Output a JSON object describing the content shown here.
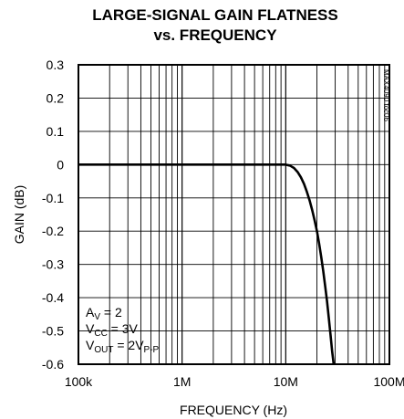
{
  "chart_data": {
    "type": "line",
    "title_line1": "LARGE-SIGNAL GAIN FLATNESS",
    "title_line2": "vs. FREQUENCY",
    "xlabel": "FREQUENCY (Hz)",
    "ylabel": "GAIN (dB)",
    "x_scale": "log",
    "xlim": [
      100000,
      100000000
    ],
    "ylim": [
      -0.6,
      0.3
    ],
    "grid": true,
    "x_ticks": [
      {
        "value": 100000,
        "label": "100k"
      },
      {
        "value": 1000000,
        "label": "1M"
      },
      {
        "value": 10000000,
        "label": "10M"
      },
      {
        "value": 100000000,
        "label": "100M"
      }
    ],
    "y_ticks": [
      {
        "value": 0.3,
        "label": "0.3"
      },
      {
        "value": 0.2,
        "label": "0.2"
      },
      {
        "value": 0.1,
        "label": "0.1"
      },
      {
        "value": 0,
        "label": "0"
      },
      {
        "value": -0.1,
        "label": "-0.1"
      },
      {
        "value": -0.2,
        "label": "-0.2"
      },
      {
        "value": -0.3,
        "label": "-0.3"
      },
      {
        "value": -0.4,
        "label": "-0.4"
      },
      {
        "value": -0.5,
        "label": "-0.5"
      },
      {
        "value": -0.6,
        "label": "-0.6"
      }
    ],
    "series": [
      {
        "x": [
          100000,
          1000000,
          5000000,
          10000000,
          11000000,
          12000000,
          13000000,
          14000000,
          15000000,
          16000000,
          17000000,
          18000000,
          19000000,
          20000000,
          21000000,
          22000000,
          23000000,
          24000000,
          25000000,
          26000000,
          27000000,
          28000000,
          29000000
        ],
        "y": [
          0,
          0,
          0,
          0,
          -0.003,
          -0.01,
          -0.022,
          -0.038,
          -0.058,
          -0.082,
          -0.108,
          -0.137,
          -0.168,
          -0.2,
          -0.238,
          -0.278,
          -0.32,
          -0.365,
          -0.41,
          -0.46,
          -0.51,
          -0.56,
          -0.6
        ]
      }
    ],
    "annotations": {
      "line1": {
        "main": "A",
        "sub": "V",
        "tail": " = 2"
      },
      "line2": {
        "main": "V",
        "sub": "CC",
        "tail": " = 3V"
      },
      "line3": {
        "main": "V",
        "sub": "OUT",
        "tail": " = 2V",
        "sub2": "P-P"
      }
    },
    "side_note": "MAX4090 toc06"
  }
}
